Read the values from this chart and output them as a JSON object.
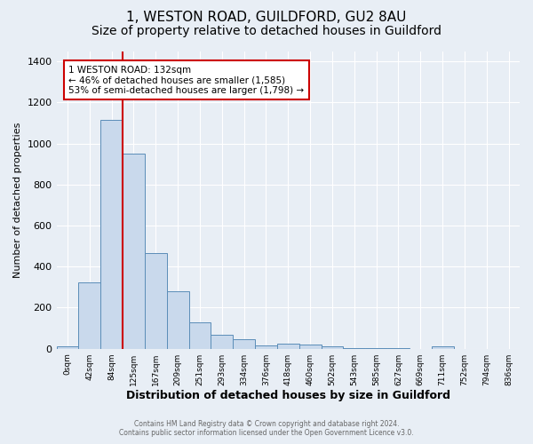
{
  "title1": "1, WESTON ROAD, GUILDFORD, GU2 8AU",
  "title2": "Size of property relative to detached houses in Guildford",
  "xlabel": "Distribution of detached houses by size in Guildford",
  "ylabel": "Number of detached properties",
  "bar_labels": [
    "0sqm",
    "42sqm",
    "84sqm",
    "125sqm",
    "167sqm",
    "209sqm",
    "251sqm",
    "293sqm",
    "334sqm",
    "376sqm",
    "418sqm",
    "460sqm",
    "502sqm",
    "543sqm",
    "585sqm",
    "627sqm",
    "669sqm",
    "711sqm",
    "752sqm",
    "794sqm",
    "836sqm"
  ],
  "bar_values": [
    10,
    325,
    1115,
    950,
    465,
    280,
    130,
    70,
    48,
    18,
    25,
    20,
    10,
    5,
    5,
    5,
    0,
    12,
    0,
    0,
    0
  ],
  "bar_color": "#c9d9ec",
  "bar_edge_color": "#5b8db8",
  "vline_color": "#cc0000",
  "ylim": [
    0,
    1450
  ],
  "yticks": [
    0,
    200,
    400,
    600,
    800,
    1000,
    1200,
    1400
  ],
  "annotation_title": "1 WESTON ROAD: 132sqm",
  "annotation_line1": "← 46% of detached houses are smaller (1,585)",
  "annotation_line2": "53% of semi-detached houses are larger (1,798) →",
  "annotation_box_color": "#cc0000",
  "footer1": "Contains HM Land Registry data © Crown copyright and database right 2024.",
  "footer2": "Contains public sector information licensed under the Open Government Licence v3.0.",
  "background_color": "#e8eef5",
  "plot_background": "#e8eef5",
  "title1_fontsize": 11,
  "title2_fontsize": 10
}
